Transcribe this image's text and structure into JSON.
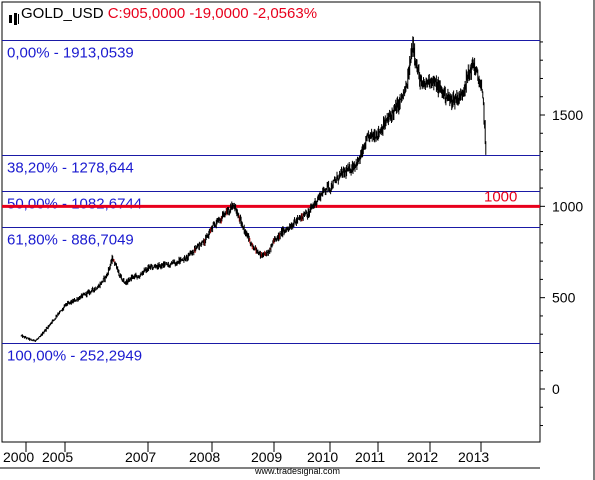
{
  "header": {
    "symbol": "GOLD_USD",
    "quote": "C:905,0000 -19,0000 -2,0563%"
  },
  "credit": "www.tradesignal.com",
  "colors": {
    "fib_line": "#1a1aa6",
    "fib_text": "#1a1ad0",
    "support_line": "#e8001c",
    "support_text": "#e8001c",
    "price": "#000000",
    "down_bar": "#b00000"
  },
  "chart_data": {
    "type": "line",
    "series": [
      {
        "x": [
          1999.9,
          2000.3,
          2000.8,
          2001.3,
          2001.8,
          2002.2,
          2002.6,
          2003.0,
          2003.3,
          2003.6,
          2004.0,
          2004.3,
          2004.6,
          2004.9,
          2005.0,
          2005.2,
          2005.5,
          2005.8,
          2006.0,
          2006.15,
          2006.3,
          2006.45,
          2006.6,
          2006.8,
          2007.0,
          2007.3,
          2007.6,
          2007.9,
          2008.0,
          2008.2,
          2008.35,
          2008.5,
          2008.65,
          2008.8,
          2008.9,
          2009.0,
          2009.2,
          2009.4,
          2009.6,
          2009.8,
          2009.95,
          2010.0,
          2010.2,
          2010.4,
          2010.6,
          2010.8,
          2011.0,
          2011.2,
          2011.4,
          2011.55,
          2011.67,
          2011.75,
          2011.85,
          2012.0,
          2012.2,
          2012.4,
          2012.6,
          2012.75,
          2012.85,
          2013.0,
          2013.2,
          2013.35,
          2013.45
        ],
        "values": [
          290,
          275,
          265,
          268,
          285,
          310,
          330,
          350,
          370,
          380,
          410,
          420,
          430,
          450,
          460,
          480,
          520,
          560,
          620,
          720,
          630,
          580,
          610,
          620,
          660,
          680,
          720,
          820,
          880,
          960,
          1010,
          880,
          780,
          730,
          740,
          820,
          870,
          920,
          960,
          1050,
          1110,
          1100,
          1170,
          1200,
          1250,
          1380,
          1400,
          1480,
          1560,
          1650,
          1900,
          1750,
          1650,
          1700,
          1640,
          1580,
          1600,
          1720,
          1780,
          1650,
          1550,
          1370,
          1215
        ]
      }
    ],
    "x_ticks": [
      {
        "label": "2000",
        "x": 2000
      },
      {
        "label": "2005",
        "x": 2005
      },
      {
        "label": "2007",
        "x": 2007
      },
      {
        "label": "2008",
        "x": 2008
      },
      {
        "label": "2009",
        "x": 2009
      },
      {
        "label": "2010",
        "x": 2010
      },
      {
        "label": "2011",
        "x": 2011
      },
      {
        "label": "2012",
        "x": 2012
      },
      {
        "label": "2013",
        "x": 2013
      }
    ],
    "y_ticks": [
      0,
      500,
      1000,
      1500
    ],
    "ylim": [
      -280,
      1950
    ],
    "fib_levels": [
      {
        "label": "0,00% - 1913,0539",
        "value": 1913.0539
      },
      {
        "label": "38,20% - 1278,644",
        "value": 1278.644
      },
      {
        "label": "50,00% - 1082,6744",
        "value": 1082.6744
      },
      {
        "label": "61,80% - 886,7049",
        "value": 886.7049
      },
      {
        "label": "100,00% - 252,2949",
        "value": 252.2949
      }
    ],
    "support_level": {
      "label": "1000",
      "value": 1000
    },
    "grid": false,
    "y_axis_side": "right"
  }
}
